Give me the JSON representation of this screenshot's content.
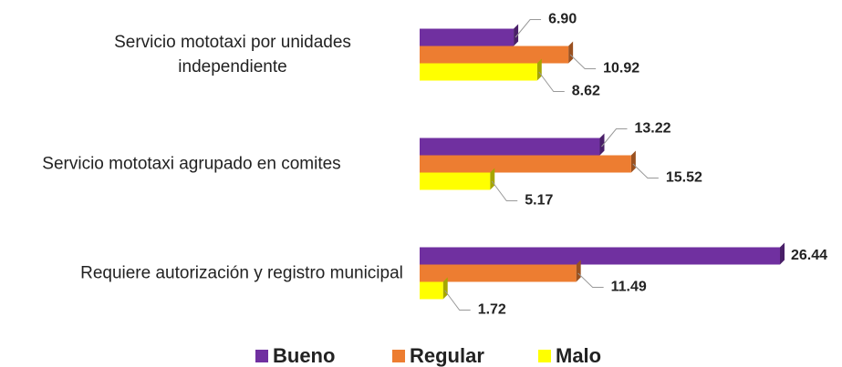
{
  "chart_data": {
    "type": "bar",
    "orientation": "horizontal",
    "categories": [
      "Servicio mototaxi por unidades independiente",
      "Servicio mototaxi agrupado en comites",
      "Requiere autorización y registro municipal"
    ],
    "series": [
      {
        "name": "Bueno",
        "color": "#7030a0",
        "values": [
          6.9,
          13.22,
          26.44
        ],
        "value_labels": [
          "6.90",
          "13.22",
          "26.44"
        ]
      },
      {
        "name": "Regular",
        "color": "#ed7d31",
        "values": [
          10.92,
          15.52,
          11.49
        ],
        "value_labels": [
          "10.92",
          "15.52",
          "11.49"
        ]
      },
      {
        "name": "Malo",
        "color": "#ffff00",
        "values": [
          8.62,
          5.17,
          1.72
        ],
        "value_labels": [
          "8.62",
          "5.17",
          "1.72"
        ]
      }
    ],
    "legend": "bottom"
  }
}
